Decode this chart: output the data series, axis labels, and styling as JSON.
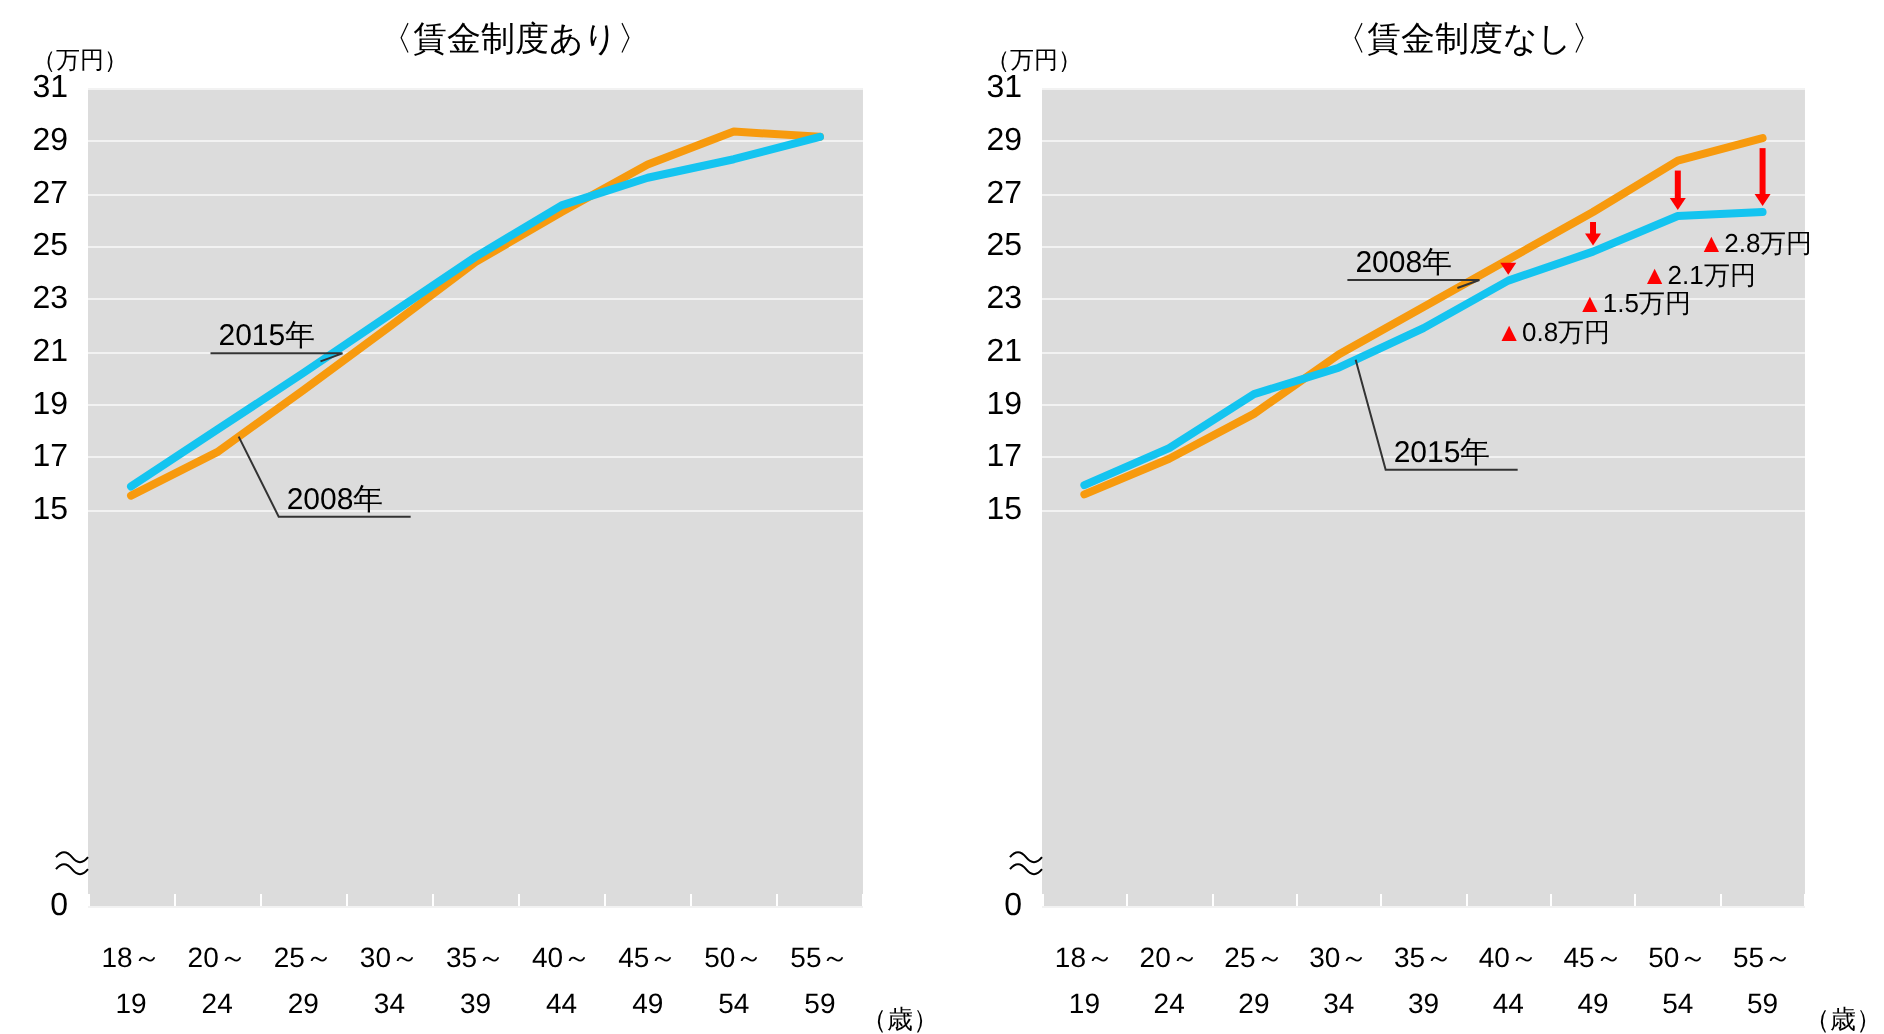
{
  "chart_data": [
    {
      "type": "line",
      "title": "〈賃金制度あり〉",
      "ylabel": "（万円）",
      "xlabel": "（歳）",
      "categories": [
        "18～\n19",
        "20～\n24",
        "25～\n29",
        "30～\n34",
        "35～\n39",
        "40～\n44",
        "45～\n49",
        "50～\n54",
        "55～\n59"
      ],
      "series": [
        {
          "name": "2008年",
          "color": "#f79a0e",
          "values": [
            15.55,
            17.2,
            19.55,
            21.95,
            24.4,
            26.3,
            28.1,
            29.35,
            29.15
          ]
        },
        {
          "name": "2015年",
          "color": "#14c4f0",
          "values": [
            15.9,
            18.05,
            20.2,
            22.4,
            24.6,
            26.55,
            27.6,
            28.3,
            29.15
          ]
        }
      ],
      "ylim": [
        0,
        31
      ],
      "yticks": [
        0,
        15,
        17,
        19,
        21,
        23,
        25,
        27,
        29,
        31
      ],
      "grid": "y",
      "legend": false,
      "marker": "none",
      "line_style": "solid"
    },
    {
      "type": "line",
      "title": "〈賃金制度なし〉",
      "ylabel": "（万円）",
      "xlabel": "（歳）",
      "categories": [
        "18～\n19",
        "20～\n24",
        "25～\n29",
        "30～\n34",
        "35～\n39",
        "40～\n44",
        "45～\n49",
        "50～\n54",
        "55～\n59"
      ],
      "series": [
        {
          "name": "2008年",
          "color": "#f79a0e",
          "values": [
            15.6,
            16.95,
            18.65,
            20.9,
            22.7,
            24.5,
            26.3,
            28.25,
            29.1
          ]
        },
        {
          "name": "2015年",
          "color": "#14c4f0",
          "values": [
            15.95,
            17.35,
            19.4,
            20.4,
            21.9,
            23.7,
            24.8,
            26.15,
            26.3
          ]
        }
      ],
      "ylim": [
        0,
        31
      ],
      "yticks": [
        0,
        15,
        17,
        19,
        21,
        23,
        25,
        27,
        29,
        31
      ],
      "grid": "y",
      "legend": false,
      "marker": "none",
      "line_style": "solid",
      "annotations": [
        {
          "text": "▲0.8万円",
          "x": "40～\n44",
          "y": 23.7
        },
        {
          "text": "▲1.5万円",
          "x": "45～\n49",
          "y": 24.8
        },
        {
          "text": "▲2.1万円",
          "x": "50～\n54",
          "y": 26.15
        },
        {
          "text": "▲2.8万円",
          "x": "55～\n59",
          "y": 26.3
        }
      ]
    }
  ]
}
